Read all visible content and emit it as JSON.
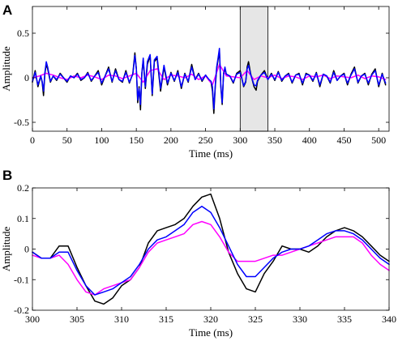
{
  "chart_data": [
    {
      "panel": "A",
      "type": "line",
      "xlabel": "Time (ms)",
      "ylabel": "Amplitude",
      "xlim": [
        0,
        515
      ],
      "ylim": [
        -0.6,
        0.8
      ],
      "xticks": [
        0,
        50,
        100,
        150,
        200,
        250,
        300,
        350,
        400,
        450,
        500
      ],
      "yticks": [
        -0.5,
        0,
        0.5
      ],
      "ytick_labels": [
        "-0.5",
        "0",
        "0.5"
      ],
      "highlight": {
        "x0": 300,
        "x1": 340,
        "color": "#e6e6e6"
      },
      "series_colors": [
        "#000000",
        "#ff00ff",
        "#0000ff"
      ],
      "series": [
        {
          "color": "#000000",
          "x": [
            0,
            4,
            8,
            12,
            14,
            16,
            18,
            20,
            22,
            26,
            30,
            35,
            40,
            45,
            50,
            55,
            60,
            65,
            70,
            75,
            80,
            85,
            90,
            95,
            100,
            105,
            110,
            115,
            120,
            125,
            130,
            135,
            140,
            145,
            148,
            150,
            152,
            154,
            156,
            158,
            160,
            163,
            166,
            170,
            173,
            176,
            180,
            185,
            190,
            195,
            200,
            205,
            210,
            215,
            220,
            225,
            230,
            235,
            240,
            245,
            250,
            255,
            258,
            260,
            262,
            264,
            266,
            268,
            270,
            272,
            274,
            276,
            278,
            280,
            285,
            290,
            295,
            300,
            305,
            308,
            310,
            312,
            315,
            320,
            323,
            325,
            330,
            335,
            340,
            345,
            350,
            355,
            360,
            365,
            370,
            375,
            380,
            385,
            390,
            395,
            400,
            405,
            410,
            415,
            420,
            425,
            430,
            435,
            440,
            445,
            450,
            455,
            460,
            465,
            470,
            475,
            480,
            485,
            490,
            495,
            500,
            505,
            510
          ],
          "y": [
            -0.05,
            0.08,
            -0.1,
            0.02,
            -0.05,
            -0.2,
            0.05,
            0.15,
            0.1,
            -0.05,
            0.02,
            -0.03,
            0.05,
            0.0,
            -0.05,
            0.02,
            0.0,
            0.05,
            -0.03,
            0.0,
            0.06,
            -0.04,
            0.02,
            0.08,
            -0.08,
            0.02,
            0.12,
            -0.05,
            0.1,
            -0.02,
            -0.05,
            0.08,
            -0.06,
            0.05,
            0.28,
            0.1,
            -0.28,
            -0.1,
            -0.36,
            0.05,
            0.2,
            -0.12,
            0.15,
            0.25,
            -0.2,
            0.18,
            0.22,
            -0.15,
            0.12,
            -0.08,
            0.06,
            -0.04,
            0.08,
            -0.12,
            0.05,
            -0.05,
            0.15,
            -0.02,
            0.05,
            -0.04,
            0.03,
            -0.03,
            -0.05,
            -0.15,
            -0.4,
            -0.1,
            0.1,
            0.2,
            0.3,
            -0.1,
            -0.3,
            0.05,
            0.1,
            0.04,
            0.02,
            -0.06,
            0.05,
            0.08,
            -0.1,
            -0.05,
            0.12,
            0.18,
            0.05,
            -0.1,
            -0.14,
            -0.04,
            0.03,
            0.08,
            -0.02,
            0.05,
            -0.03,
            0.07,
            -0.04,
            0.02,
            0.05,
            -0.06,
            0.03,
            0.05,
            -0.08,
            0.05,
            0.03,
            -0.04,
            0.06,
            -0.1,
            0.04,
            0.02,
            -0.06,
            0.08,
            -0.03,
            0.02,
            0.05,
            -0.08,
            0.04,
            0.12,
            -0.06,
            0.02,
            0.05,
            -0.08,
            0.04,
            0.1,
            -0.1,
            0.05,
            -0.08
          ]
        },
        {
          "color": "#ff00ff",
          "x": [
            0,
            10,
            20,
            30,
            40,
            50,
            60,
            70,
            80,
            90,
            100,
            110,
            120,
            130,
            140,
            150,
            160,
            170,
            180,
            190,
            200,
            210,
            220,
            230,
            240,
            250,
            260,
            270,
            280,
            290,
            300,
            310,
            320,
            330,
            340,
            350,
            360,
            370,
            380,
            390,
            400,
            410,
            420,
            430,
            440,
            450,
            460,
            470,
            480,
            490,
            500,
            510
          ],
          "y": [
            0.0,
            0.02,
            0.05,
            0.03,
            0.0,
            -0.02,
            0.02,
            0.0,
            0.03,
            0.01,
            -0.02,
            0.03,
            0.02,
            -0.01,
            0.02,
            0.05,
            -0.05,
            0.08,
            0.1,
            -0.02,
            0.03,
            0.02,
            0.0,
            0.04,
            -0.02,
            0.02,
            -0.08,
            0.15,
            0.02,
            0.01,
            0.0,
            0.08,
            -0.02,
            0.02,
            0.0,
            0.03,
            -0.01,
            0.02,
            0.01,
            -0.02,
            0.02,
            0.01,
            0.03,
            -0.01,
            0.02,
            0.01,
            0.0,
            0.03,
            -0.01,
            0.02,
            0.01,
            -0.02
          ]
        },
        {
          "color": "#0000ff",
          "x": [
            0,
            4,
            8,
            12,
            14,
            16,
            18,
            20,
            22,
            26,
            30,
            35,
            40,
            45,
            50,
            55,
            60,
            65,
            70,
            75,
            80,
            85,
            90,
            95,
            100,
            105,
            110,
            115,
            120,
            125,
            130,
            135,
            140,
            145,
            148,
            150,
            152,
            154,
            156,
            158,
            160,
            163,
            166,
            170,
            173,
            176,
            180,
            185,
            190,
            195,
            200,
            205,
            210,
            215,
            220,
            225,
            230,
            235,
            240,
            245,
            250,
            255,
            258,
            260,
            262,
            264,
            266,
            268,
            270,
            272,
            274,
            276,
            278,
            280,
            285,
            290,
            295,
            300,
            305,
            308,
            310,
            312,
            315,
            320,
            323,
            325,
            330,
            335,
            340,
            345,
            350,
            355,
            360,
            365,
            370,
            375,
            380,
            385,
            390,
            395,
            400,
            405,
            410,
            415,
            420,
            425,
            430,
            435,
            440,
            445,
            450,
            455,
            460,
            465,
            470,
            475,
            480,
            485,
            490,
            495,
            500,
            505,
            510
          ],
          "y": [
            -0.04,
            0.06,
            -0.08,
            0.02,
            -0.04,
            -0.15,
            0.06,
            0.18,
            0.12,
            -0.04,
            0.02,
            -0.02,
            0.04,
            0.0,
            -0.04,
            0.02,
            0.0,
            0.04,
            -0.02,
            0.0,
            0.05,
            -0.03,
            0.02,
            0.06,
            -0.06,
            0.02,
            0.1,
            -0.04,
            0.08,
            -0.02,
            -0.04,
            0.06,
            -0.05,
            0.04,
            0.25,
            0.1,
            -0.25,
            -0.12,
            -0.3,
            0.05,
            0.22,
            -0.1,
            0.18,
            0.26,
            -0.18,
            0.2,
            0.24,
            -0.12,
            0.14,
            -0.06,
            0.05,
            -0.03,
            0.06,
            -0.1,
            0.04,
            -0.04,
            0.12,
            -0.02,
            0.04,
            -0.03,
            0.03,
            -0.02,
            -0.04,
            -0.1,
            -0.35,
            -0.08,
            0.12,
            0.22,
            0.33,
            -0.08,
            -0.28,
            0.04,
            0.12,
            0.04,
            0.02,
            -0.05,
            0.04,
            0.06,
            -0.09,
            -0.04,
            0.1,
            0.14,
            0.04,
            -0.08,
            -0.09,
            -0.03,
            0.03,
            0.06,
            -0.02,
            0.04,
            -0.02,
            0.06,
            -0.03,
            0.02,
            0.04,
            -0.05,
            0.03,
            0.04,
            -0.06,
            0.04,
            0.03,
            -0.03,
            0.05,
            -0.08,
            0.04,
            0.02,
            -0.05,
            0.06,
            -0.03,
            0.02,
            0.04,
            -0.06,
            0.03,
            0.1,
            -0.05,
            0.02,
            0.04,
            -0.06,
            0.03,
            0.08,
            -0.08,
            0.04,
            -0.06
          ]
        }
      ]
    },
    {
      "panel": "B",
      "type": "line",
      "xlabel": "Time (ms)",
      "ylabel": "Amplitude",
      "xlim": [
        300,
        340
      ],
      "ylim": [
        -0.2,
        0.2
      ],
      "xticks": [
        300,
        305,
        310,
        315,
        320,
        325,
        330,
        335,
        340
      ],
      "yticks": [
        -0.2,
        -0.1,
        0,
        0.1,
        0.2
      ],
      "ytick_labels": [
        "-0.2",
        "-0.1",
        "0",
        "0.1",
        "0.2"
      ],
      "series_colors": [
        "#000000",
        "#ff00ff",
        "#0000ff"
      ],
      "series": [
        {
          "color": "#000000",
          "x": [
            300,
            301,
            302,
            303,
            304,
            305,
            306,
            307,
            308,
            309,
            310,
            311,
            312,
            313,
            314,
            315,
            316,
            317,
            318,
            319,
            320,
            321,
            322,
            323,
            324,
            325,
            326,
            327,
            328,
            329,
            330,
            331,
            332,
            333,
            334,
            335,
            336,
            337,
            338,
            339,
            340
          ],
          "y": [
            -0.01,
            -0.03,
            -0.03,
            0.01,
            0.01,
            -0.06,
            -0.12,
            -0.17,
            -0.18,
            -0.16,
            -0.12,
            -0.1,
            -0.06,
            0.02,
            0.06,
            0.07,
            0.08,
            0.1,
            0.14,
            0.17,
            0.18,
            0.1,
            -0.01,
            -0.08,
            -0.13,
            -0.14,
            -0.08,
            -0.04,
            0.01,
            0.0,
            0.0,
            -0.01,
            0.01,
            0.04,
            0.06,
            0.07,
            0.06,
            0.04,
            0.01,
            -0.02,
            -0.04
          ]
        },
        {
          "color": "#ff00ff",
          "x": [
            300,
            301,
            302,
            303,
            304,
            305,
            306,
            307,
            308,
            309,
            310,
            311,
            312,
            313,
            314,
            315,
            316,
            317,
            318,
            319,
            320,
            321,
            322,
            323,
            324,
            325,
            326,
            327,
            328,
            329,
            330,
            331,
            332,
            333,
            334,
            335,
            336,
            337,
            338,
            339,
            340
          ],
          "y": [
            -0.02,
            -0.03,
            -0.03,
            -0.02,
            -0.05,
            -0.1,
            -0.14,
            -0.15,
            -0.13,
            -0.12,
            -0.11,
            -0.1,
            -0.06,
            -0.01,
            0.02,
            0.03,
            0.04,
            0.05,
            0.08,
            0.09,
            0.08,
            0.04,
            -0.01,
            -0.04,
            -0.04,
            -0.04,
            -0.03,
            -0.02,
            -0.02,
            -0.01,
            0.0,
            0.01,
            0.02,
            0.03,
            0.04,
            0.04,
            0.04,
            0.02,
            -0.02,
            -0.05,
            -0.07
          ]
        },
        {
          "color": "#0000ff",
          "x": [
            300,
            301,
            302,
            303,
            304,
            305,
            306,
            307,
            308,
            309,
            310,
            311,
            312,
            313,
            314,
            315,
            316,
            317,
            318,
            319,
            320,
            321,
            322,
            323,
            324,
            325,
            326,
            327,
            328,
            329,
            330,
            331,
            332,
            333,
            334,
            335,
            336,
            337,
            338,
            339,
            340
          ],
          "y": [
            -0.01,
            -0.03,
            -0.03,
            -0.01,
            -0.01,
            -0.07,
            -0.12,
            -0.15,
            -0.14,
            -0.13,
            -0.11,
            -0.09,
            -0.05,
            0.0,
            0.03,
            0.04,
            0.06,
            0.08,
            0.12,
            0.14,
            0.12,
            0.07,
            0.01,
            -0.05,
            -0.09,
            -0.09,
            -0.06,
            -0.03,
            -0.01,
            0.0,
            0.0,
            0.01,
            0.03,
            0.05,
            0.06,
            0.06,
            0.05,
            0.03,
            0.0,
            -0.03,
            -0.05
          ]
        }
      ]
    }
  ]
}
